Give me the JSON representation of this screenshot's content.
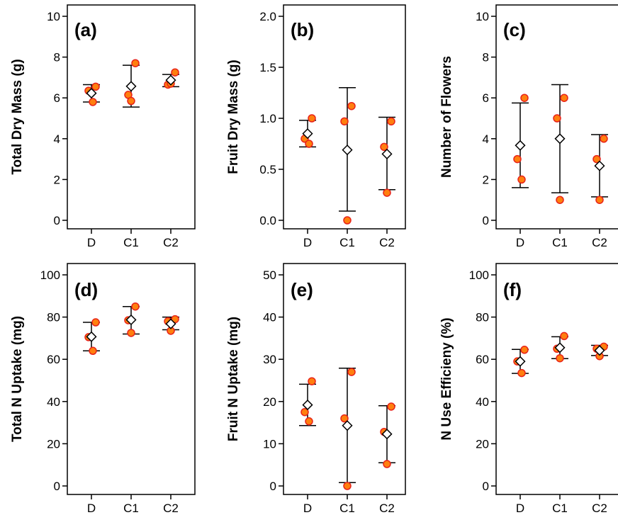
{
  "chart_data": [
    {
      "type": "scatter",
      "panel": "(a)",
      "ylabel": "Total Dry Mass (g)",
      "categories": [
        "D",
        "C1",
        "C2"
      ],
      "ylim": [
        0,
        10
      ],
      "yticks": [
        0,
        2,
        4,
        6,
        8,
        10
      ],
      "points": [
        [
          6.55,
          6.35,
          5.8
        ],
        [
          7.7,
          6.15,
          5.85
        ],
        [
          7.25,
          6.65,
          6.7
        ]
      ],
      "mean": [
        6.23,
        6.57,
        6.87
      ],
      "error_low": [
        5.8,
        5.55,
        6.55
      ],
      "error_high": [
        6.65,
        7.6,
        7.15
      ]
    },
    {
      "type": "scatter",
      "panel": "(b)",
      "ylabel": "Fruit Dry Mass (g)",
      "categories": [
        "D",
        "C1",
        "C2"
      ],
      "ylim": [
        0,
        2.0
      ],
      "yticks": [
        "0.0",
        "0.5",
        "1.0",
        "1.5",
        "2.0"
      ],
      "points": [
        [
          1.0,
          0.8,
          0.75
        ],
        [
          1.12,
          0.97,
          0.0
        ],
        [
          0.97,
          0.72,
          0.27
        ]
      ],
      "mean": [
        0.85,
        0.69,
        0.65
      ],
      "error_low": [
        0.72,
        0.09,
        0.3
      ],
      "error_high": [
        0.98,
        1.3,
        1.01
      ]
    },
    {
      "type": "scatter",
      "panel": "(c)",
      "ylabel": "Number of Flowers",
      "categories": [
        "D",
        "C1",
        "C2"
      ],
      "ylim": [
        0,
        10
      ],
      "yticks": [
        0,
        2,
        4,
        6,
        8,
        10
      ],
      "points": [
        [
          6,
          3,
          2
        ],
        [
          6,
          5,
          1
        ],
        [
          4,
          3,
          1
        ]
      ],
      "mean": [
        3.67,
        4.0,
        2.67
      ],
      "error_low": [
        1.6,
        1.35,
        1.15
      ],
      "error_high": [
        5.75,
        6.65,
        4.2
      ]
    },
    {
      "type": "scatter",
      "panel": "(d)",
      "ylabel": "Total N Uptake (mg)",
      "categories": [
        "D",
        "C1",
        "C2"
      ],
      "ylim": [
        0,
        100
      ],
      "yticks": [
        0,
        20,
        40,
        60,
        80,
        100
      ],
      "points": [
        [
          77.5,
          70.5,
          64
        ],
        [
          85,
          78.5,
          72.5
        ],
        [
          79,
          78,
          73.5
        ]
      ],
      "mean": [
        70.7,
        78.7,
        76.8
      ],
      "error_low": [
        64,
        72,
        74
      ],
      "error_high": [
        77.5,
        85,
        80
      ]
    },
    {
      "type": "scatter",
      "panel": "(e)",
      "ylabel": "Fruit N Uptake (mg)",
      "categories": [
        "D",
        "C1",
        "C2"
      ],
      "ylim": [
        0,
        50
      ],
      "yticks": [
        0,
        10,
        20,
        30,
        40,
        50
      ],
      "points": [
        [
          24.8,
          17.5,
          15.3
        ],
        [
          27,
          16,
          0
        ],
        [
          18.8,
          12.8,
          5.2
        ]
      ],
      "mean": [
        19.2,
        14.3,
        12.3
      ],
      "error_low": [
        14.3,
        0.8,
        5.5
      ],
      "error_high": [
        24.1,
        27.9,
        19
      ]
    },
    {
      "type": "scatter",
      "panel": "(f)",
      "ylabel": "N Use Efficieny (%)",
      "categories": [
        "D",
        "C1",
        "C2"
      ],
      "ylim": [
        0,
        100
      ],
      "yticks": [
        0,
        20,
        40,
        60,
        80,
        100
      ],
      "points": [
        [
          64.5,
          59,
          53.5
        ],
        [
          71,
          65,
          60.5
        ],
        [
          66,
          65,
          61.5
        ]
      ],
      "mean": [
        59,
        65.5,
        64.2
      ],
      "error_low": [
        53.3,
        60.3,
        61.8
      ],
      "error_high": [
        64.7,
        70.7,
        66.6
      ]
    }
  ],
  "colors": {
    "point_fill": "#ff7f0e",
    "point_stroke": "#e8231a",
    "mean_fill": "#ffffff",
    "axis": "#000000"
  }
}
